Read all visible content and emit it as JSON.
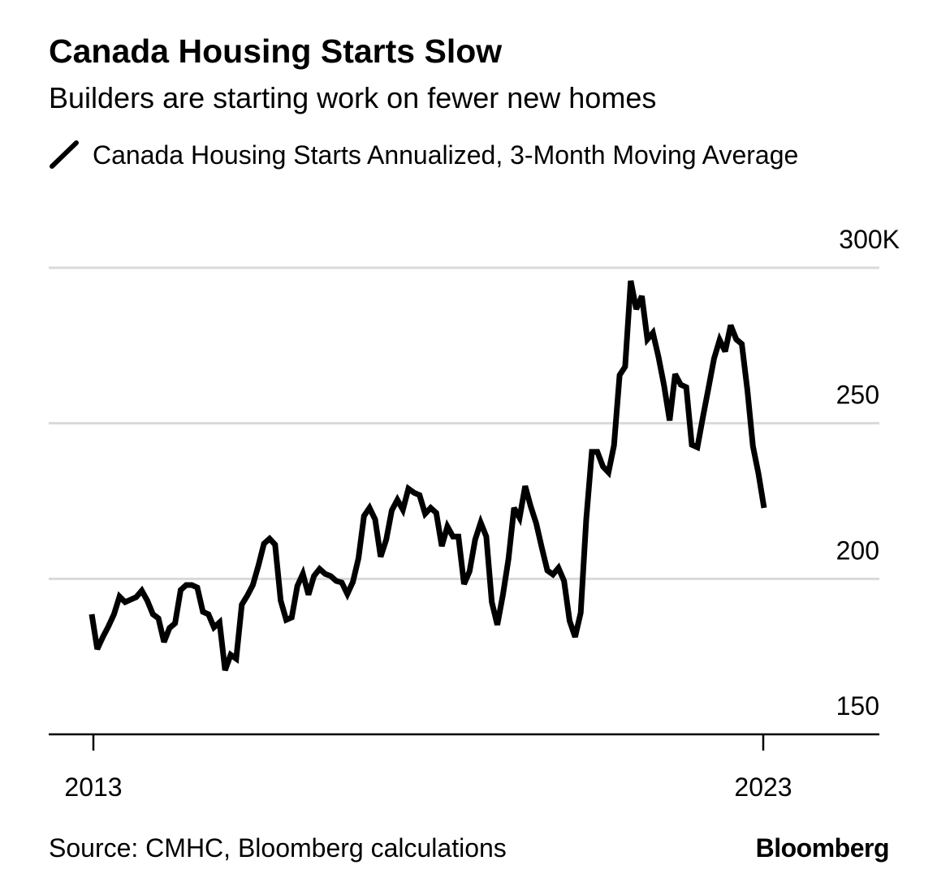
{
  "chart_data": {
    "type": "line",
    "title": "Canada Housing Starts Slow",
    "subtitle": "Builders are starting work on fewer new homes",
    "source": "Source: CMHC, Bloomberg calculations",
    "brand": "Bloomberg",
    "legend": "top-left",
    "categories": [
      "2013",
      null,
      null,
      null,
      null,
      null,
      null,
      null,
      null,
      null,
      null,
      null,
      null,
      null,
      null,
      null,
      null,
      null,
      null,
      null,
      null,
      null,
      null,
      null,
      null,
      null,
      null,
      null,
      null,
      null,
      null,
      null,
      null,
      null,
      null,
      null,
      null,
      null,
      null,
      null,
      null,
      null,
      null,
      null,
      null,
      null,
      null,
      null,
      null,
      null,
      null,
      null,
      null,
      null,
      null,
      null,
      null,
      null,
      null,
      null,
      null,
      null,
      null,
      null,
      null,
      null,
      null,
      null,
      null,
      null,
      null,
      null,
      null,
      null,
      null,
      null,
      null,
      null,
      null,
      null,
      null,
      null,
      null,
      null,
      null,
      null,
      null,
      null,
      null,
      null,
      null,
      null,
      null,
      null,
      null,
      null,
      null,
      null,
      null,
      null,
      null,
      null,
      null,
      null,
      null,
      null,
      null,
      null,
      null,
      null,
      null,
      null,
      null,
      null,
      null,
      null,
      null,
      null,
      null,
      null,
      null,
      "2023"
    ],
    "series": [
      {
        "name": "Canada Housing Starts Annualized, 3-Month Moving Average",
        "color": "#000000",
        "values": [
          188.6,
          177.4,
          181.3,
          184.7,
          188.6,
          194.3,
          192.5,
          193.3,
          194.1,
          196.2,
          193.0,
          188.6,
          187.3,
          179.7,
          184.2,
          185.7,
          196.4,
          198.0,
          198.0,
          197.2,
          189.4,
          188.6,
          184.4,
          186.0,
          170.6,
          175.6,
          174.3,
          191.7,
          194.6,
          198.0,
          204.3,
          211.3,
          212.9,
          211.0,
          193.0,
          186.8,
          187.6,
          197.7,
          201.6,
          194.9,
          200.9,
          203.2,
          201.6,
          200.9,
          199.3,
          198.8,
          195.1,
          199.0,
          206.6,
          220.2,
          222.8,
          219.1,
          207.1,
          212.6,
          222.0,
          225.4,
          222.2,
          229.0,
          227.7,
          226.9,
          220.9,
          222.8,
          221.2,
          210.5,
          216.8,
          213.6,
          213.6,
          198.3,
          202.4,
          212.6,
          218.1,
          213.6,
          192.5,
          185.2,
          194.9,
          206.3,
          222.8,
          219.6,
          229.8,
          223.3,
          217.8,
          210.0,
          202.7,
          201.4,
          203.5,
          199.3,
          186.5,
          181.3,
          189.1,
          219.1,
          240.8,
          240.8,
          236.1,
          234.2,
          242.9,
          265.5,
          268.2,
          295.8,
          286.7,
          290.9,
          277.0,
          279.1,
          271.3,
          262.2,
          250.9,
          265.8,
          262.4,
          261.6,
          243.1,
          242.3,
          252.0,
          261.4,
          270.8,
          276.8,
          273.1,
          281.5,
          277.0,
          275.5,
          260.6,
          242.6,
          233.7,
          222.8
        ]
      }
    ],
    "ylim": [
      150,
      300
    ],
    "yticks": [
      150,
      200,
      250,
      {
        "value": 300,
        "label": "300K"
      }
    ],
    "grid": true
  }
}
